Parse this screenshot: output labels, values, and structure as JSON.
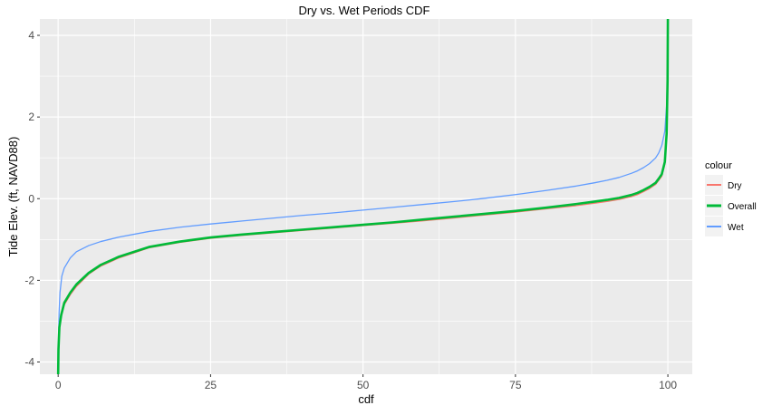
{
  "chart_data": {
    "type": "line",
    "title": "Dry vs. Wet Periods CDF",
    "xlabel": "cdf",
    "ylabel": "Tide Elev. (ft, NAVD88)",
    "xlim": [
      -3,
      104
    ],
    "ylim": [
      -4.3,
      4.4
    ],
    "x_ticks": [
      0,
      25,
      50,
      75,
      100
    ],
    "x_tick_labels": [
      "0",
      "25",
      "50",
      "75",
      "100"
    ],
    "y_ticks": [
      -4,
      -2,
      0,
      2,
      4
    ],
    "y_tick_labels": [
      "-4",
      "-2",
      "0",
      "2",
      "4"
    ],
    "grid": true,
    "legend": {
      "title": "colour",
      "position": "right",
      "entries": [
        "Dry",
        "Overall",
        "Wet"
      ]
    },
    "colors": {
      "Dry": "#F8766D",
      "Overall": "#00BA38",
      "Wet": "#619CFF",
      "panel": "#EBEBEB",
      "grid": "#FFFFFF"
    },
    "series": [
      {
        "name": "Dry",
        "x": [
          0,
          0.05,
          0.2,
          0.5,
          1,
          2,
          3,
          5,
          7,
          10,
          15,
          20,
          25,
          30,
          35,
          40,
          45,
          50,
          55,
          60,
          65,
          70,
          75,
          80,
          85,
          88,
          90,
          92,
          94,
          95,
          96,
          97,
          98,
          98.5,
          99,
          99.5,
          99.8,
          99.95,
          100
        ],
        "y": [
          -4.3,
          -3.8,
          -3.2,
          -2.9,
          -2.6,
          -2.35,
          -2.15,
          -1.85,
          -1.65,
          -1.45,
          -1.2,
          -1.07,
          -0.97,
          -0.9,
          -0.84,
          -0.78,
          -0.72,
          -0.66,
          -0.6,
          -0.54,
          -0.47,
          -0.4,
          -0.33,
          -0.25,
          -0.17,
          -0.11,
          -0.07,
          -0.02,
          0.05,
          0.1,
          0.17,
          0.25,
          0.35,
          0.45,
          0.55,
          0.85,
          1.5,
          2.8,
          4.4
        ]
      },
      {
        "name": "Overall",
        "x": [
          0,
          0.05,
          0.2,
          0.5,
          1,
          2,
          3,
          5,
          7,
          10,
          15,
          20,
          25,
          30,
          35,
          40,
          45,
          50,
          55,
          60,
          65,
          70,
          75,
          80,
          85,
          88,
          90,
          92,
          94,
          95,
          96,
          97,
          98,
          98.5,
          99,
          99.5,
          99.8,
          99.95,
          100
        ],
        "y": [
          -4.3,
          -3.7,
          -3.15,
          -2.85,
          -2.55,
          -2.3,
          -2.1,
          -1.82,
          -1.62,
          -1.42,
          -1.18,
          -1.05,
          -0.95,
          -0.88,
          -0.82,
          -0.76,
          -0.7,
          -0.64,
          -0.58,
          -0.51,
          -0.44,
          -0.37,
          -0.3,
          -0.22,
          -0.13,
          -0.07,
          -0.03,
          0.02,
          0.09,
          0.14,
          0.21,
          0.29,
          0.39,
          0.49,
          0.6,
          0.9,
          1.6,
          2.9,
          4.4
        ]
      },
      {
        "name": "Wet",
        "x": [
          0,
          0.05,
          0.15,
          0.3,
          0.6,
          1,
          2,
          3,
          5,
          7,
          10,
          15,
          20,
          25,
          30,
          35,
          40,
          45,
          50,
          55,
          60,
          65,
          70,
          75,
          80,
          85,
          88,
          90,
          92,
          94,
          95,
          96,
          97,
          98,
          98.5,
          99,
          99.5,
          99.8,
          99.95,
          100
        ],
        "y": [
          -4.3,
          -3.6,
          -2.8,
          -2.3,
          -1.9,
          -1.7,
          -1.45,
          -1.3,
          -1.15,
          -1.05,
          -0.94,
          -0.8,
          -0.7,
          -0.62,
          -0.55,
          -0.48,
          -0.41,
          -0.35,
          -0.28,
          -0.21,
          -0.14,
          -0.07,
          0.01,
          0.1,
          0.2,
          0.31,
          0.39,
          0.45,
          0.52,
          0.62,
          0.68,
          0.76,
          0.86,
          1.0,
          1.12,
          1.3,
          1.65,
          2.3,
          3.2,
          4.4
        ]
      }
    ]
  }
}
